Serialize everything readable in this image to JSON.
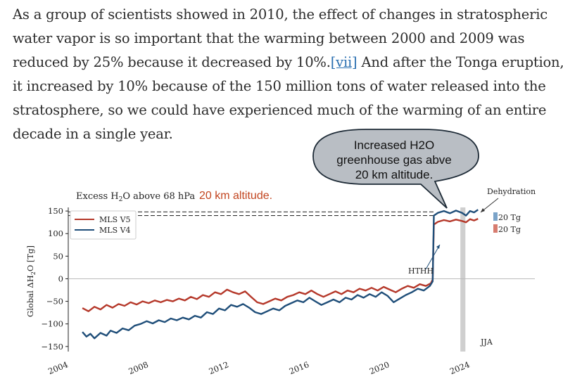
{
  "article": {
    "line1": "As a group of scientists showed in 2010, the effect of changes in stratospheric",
    "line2": "water vapor is so important that the warming between 2000 and 2009 was",
    "line3_pre": "reduced by 25% because it decreased by 10%.",
    "ref_label": "[vii]",
    "line3_post": " And after the Tonga eruption,",
    "line4": "it increased by 10% because of the 150 million tons of water released into the",
    "line5": "stratosphere, so we could have experienced much of the warming of an entire",
    "line6": "decade in a single year."
  },
  "callout": {
    "line1": "Increased H2O",
    "line2": "greenhouse gas abve",
    "line3": "20 km altitude."
  },
  "chart_data": {
    "type": "line",
    "title_prefix": "Excess H",
    "title_sub": "2",
    "title_suffix": "O above 68 hPa",
    "title_annotation": "20 km altitude.",
    "ylabel_prefix": "Global ΔH",
    "ylabel_sub": "2",
    "ylabel_suffix": "O [Tg]",
    "xlabel": "",
    "ylim": [
      -155,
      158
    ],
    "xlim": [
      2004,
      2024.5
    ],
    "yticks": [
      150,
      100,
      50,
      0,
      -50,
      -100,
      -150
    ],
    "ytick_labels": [
      "150",
      "100",
      "50",
      "0",
      "−50",
      "−100",
      "−150"
    ],
    "xticks": [
      2004,
      2008,
      2012,
      2016,
      2020,
      2024
    ],
    "xtick_labels": [
      "2004",
      "2008",
      "2012",
      "2016",
      "2020",
      "2024"
    ],
    "annotations": {
      "hthh": "HTHH",
      "hthh_date": 2022.04,
      "dehydration": "Dehydration",
      "jja": "JJA",
      "jja_start": 2023.42,
      "jja_end": 2023.67,
      "bar_label_v4": "20 Tg",
      "bar_label_v5": "20 Tg"
    },
    "reference_lines": [
      148,
      140
    ],
    "series": [
      {
        "name": "MLS V5",
        "color": "#b5382a",
        "points": [
          [
            2004.6,
            -65
          ],
          [
            2004.9,
            -72
          ],
          [
            2005.2,
            -62
          ],
          [
            2005.5,
            -68
          ],
          [
            2005.8,
            -58
          ],
          [
            2006.1,
            -64
          ],
          [
            2006.4,
            -56
          ],
          [
            2006.7,
            -60
          ],
          [
            2007.0,
            -52
          ],
          [
            2007.3,
            -57
          ],
          [
            2007.6,
            -50
          ],
          [
            2007.9,
            -54
          ],
          [
            2008.2,
            -48
          ],
          [
            2008.5,
            -52
          ],
          [
            2008.8,
            -47
          ],
          [
            2009.1,
            -50
          ],
          [
            2009.4,
            -44
          ],
          [
            2009.7,
            -48
          ],
          [
            2010.0,
            -40
          ],
          [
            2010.3,
            -45
          ],
          [
            2010.6,
            -36
          ],
          [
            2010.9,
            -40
          ],
          [
            2011.2,
            -30
          ],
          [
            2011.5,
            -34
          ],
          [
            2011.8,
            -24
          ],
          [
            2012.1,
            -30
          ],
          [
            2012.4,
            -34
          ],
          [
            2012.7,
            -28
          ],
          [
            2013.0,
            -40
          ],
          [
            2013.3,
            -52
          ],
          [
            2013.6,
            -56
          ],
          [
            2013.9,
            -50
          ],
          [
            2014.2,
            -44
          ],
          [
            2014.5,
            -48
          ],
          [
            2014.8,
            -40
          ],
          [
            2015.1,
            -36
          ],
          [
            2015.4,
            -30
          ],
          [
            2015.7,
            -34
          ],
          [
            2016.0,
            -26
          ],
          [
            2016.3,
            -34
          ],
          [
            2016.6,
            -40
          ],
          [
            2016.9,
            -34
          ],
          [
            2017.2,
            -28
          ],
          [
            2017.5,
            -34
          ],
          [
            2017.8,
            -26
          ],
          [
            2018.1,
            -30
          ],
          [
            2018.4,
            -22
          ],
          [
            2018.7,
            -26
          ],
          [
            2019.0,
            -20
          ],
          [
            2019.3,
            -26
          ],
          [
            2019.6,
            -18
          ],
          [
            2019.9,
            -24
          ],
          [
            2020.2,
            -30
          ],
          [
            2020.5,
            -22
          ],
          [
            2020.8,
            -16
          ],
          [
            2021.1,
            -20
          ],
          [
            2021.4,
            -12
          ],
          [
            2021.7,
            -16
          ],
          [
            2021.95,
            -10
          ],
          [
            2022.04,
            -2
          ],
          [
            2022.1,
            120
          ],
          [
            2022.3,
            126
          ],
          [
            2022.6,
            130
          ],
          [
            2022.9,
            127
          ],
          [
            2023.2,
            131
          ],
          [
            2023.5,
            128
          ],
          [
            2023.7,
            125
          ],
          [
            2023.9,
            132
          ],
          [
            2024.1,
            129
          ],
          [
            2024.3,
            133
          ]
        ]
      },
      {
        "name": "MLS V4",
        "color": "#1f4e79",
        "points": [
          [
            2004.6,
            -118
          ],
          [
            2004.8,
            -128
          ],
          [
            2005.0,
            -122
          ],
          [
            2005.2,
            -132
          ],
          [
            2005.5,
            -120
          ],
          [
            2005.8,
            -126
          ],
          [
            2006.0,
            -115
          ],
          [
            2006.3,
            -120
          ],
          [
            2006.6,
            -110
          ],
          [
            2006.9,
            -114
          ],
          [
            2007.2,
            -104
          ],
          [
            2007.5,
            -100
          ],
          [
            2007.8,
            -94
          ],
          [
            2008.1,
            -99
          ],
          [
            2008.4,
            -92
          ],
          [
            2008.7,
            -96
          ],
          [
            2009.0,
            -88
          ],
          [
            2009.3,
            -92
          ],
          [
            2009.6,
            -86
          ],
          [
            2009.9,
            -90
          ],
          [
            2010.2,
            -82
          ],
          [
            2010.5,
            -86
          ],
          [
            2010.8,
            -74
          ],
          [
            2011.1,
            -78
          ],
          [
            2011.4,
            -66
          ],
          [
            2011.7,
            -70
          ],
          [
            2012.0,
            -58
          ],
          [
            2012.3,
            -62
          ],
          [
            2012.6,
            -56
          ],
          [
            2012.9,
            -64
          ],
          [
            2013.2,
            -74
          ],
          [
            2013.5,
            -78
          ],
          [
            2013.8,
            -72
          ],
          [
            2014.1,
            -66
          ],
          [
            2014.4,
            -70
          ],
          [
            2014.7,
            -60
          ],
          [
            2015.0,
            -54
          ],
          [
            2015.3,
            -48
          ],
          [
            2015.6,
            -52
          ],
          [
            2015.9,
            -42
          ],
          [
            2016.2,
            -50
          ],
          [
            2016.5,
            -58
          ],
          [
            2016.8,
            -52
          ],
          [
            2017.1,
            -46
          ],
          [
            2017.4,
            -52
          ],
          [
            2017.7,
            -42
          ],
          [
            2018.0,
            -46
          ],
          [
            2018.3,
            -36
          ],
          [
            2018.6,
            -42
          ],
          [
            2018.9,
            -34
          ],
          [
            2019.2,
            -40
          ],
          [
            2019.5,
            -30
          ],
          [
            2019.8,
            -38
          ],
          [
            2020.1,
            -52
          ],
          [
            2020.4,
            -44
          ],
          [
            2020.7,
            -36
          ],
          [
            2021.0,
            -30
          ],
          [
            2021.3,
            -22
          ],
          [
            2021.6,
            -26
          ],
          [
            2021.9,
            -16
          ],
          [
            2022.04,
            -6
          ],
          [
            2022.1,
            140
          ],
          [
            2022.3,
            146
          ],
          [
            2022.6,
            150
          ],
          [
            2022.9,
            145
          ],
          [
            2023.2,
            151
          ],
          [
            2023.5,
            146
          ],
          [
            2023.7,
            140
          ],
          [
            2023.9,
            150
          ],
          [
            2024.1,
            147
          ],
          [
            2024.3,
            153
          ]
        ]
      }
    ]
  },
  "colors": {
    "v5": "#b5382a",
    "v4": "#1f4e79",
    "callout_fill": "#b9bec4",
    "callout_stroke": "#1d2a36",
    "annotation_orange": "#c2451f",
    "jja_band": "#cfcfcf"
  }
}
